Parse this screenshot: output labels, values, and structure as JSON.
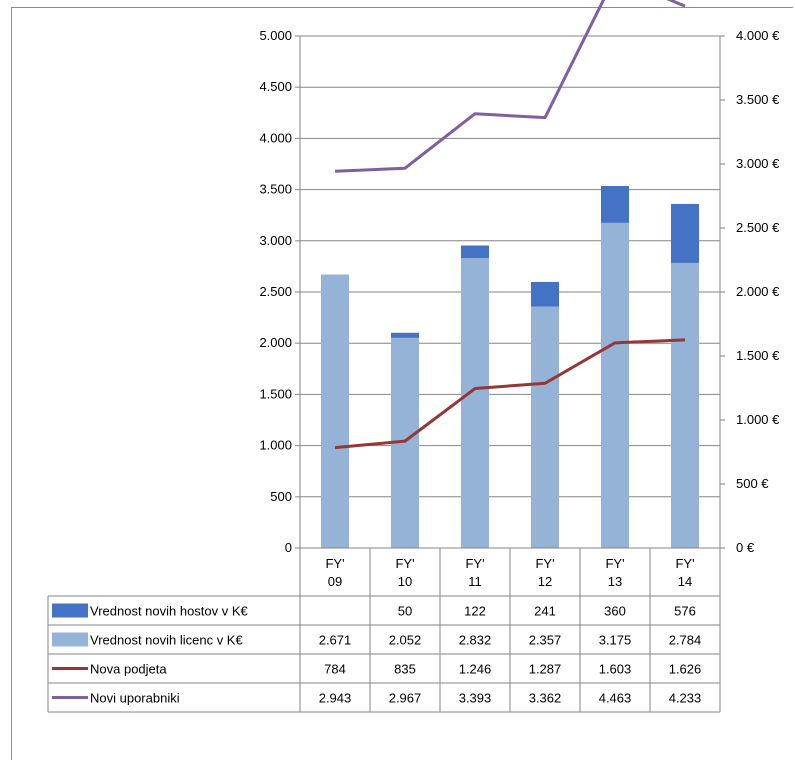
{
  "chart_data": {
    "type": "bar",
    "stacked": true,
    "categories": [
      [
        "FY'",
        "09"
      ],
      [
        "FY'",
        "10"
      ],
      [
        "FY'",
        "11"
      ],
      [
        "FY'",
        "12"
      ],
      [
        "FY'",
        "13"
      ],
      [
        "FY'",
        "14"
      ]
    ],
    "left_axis": {
      "ylim": [
        0,
        5000
      ],
      "ticks": [
        0,
        500,
        1000,
        1500,
        2000,
        2500,
        3000,
        3500,
        4000,
        4500,
        5000
      ],
      "tick_labels": [
        "0",
        "500",
        "1.000",
        "1.500",
        "2.000",
        "2.500",
        "3.000",
        "3.500",
        "4.000",
        "4.500",
        "5.000"
      ]
    },
    "right_axis": {
      "ylim": [
        0,
        4000
      ],
      "ticks": [
        0,
        500,
        1000,
        1500,
        2000,
        2500,
        3000,
        3500,
        4000
      ],
      "tick_labels": [
        "0 €",
        "500 €",
        "1.000 €",
        "1.500 €",
        "2.000 €",
        "2.500 €",
        "3.000 €",
        "3.500 €",
        "4.000 €"
      ]
    },
    "series": [
      {
        "name": "Vrednost novih hostov v K€",
        "kind": "bar",
        "axis": "left",
        "color": "#4472C4",
        "values": [
          0,
          50,
          122,
          241,
          360,
          576
        ],
        "display": [
          "",
          "50",
          "122",
          "241",
          "360",
          "576"
        ]
      },
      {
        "name": "Vrednost novih licenc v K€",
        "kind": "bar",
        "axis": "left",
        "color": "#95B3D7",
        "values": [
          2671,
          2052,
          2832,
          2357,
          3175,
          2784
        ],
        "display": [
          "2.671",
          "2.052",
          "2.832",
          "2.357",
          "3.175",
          "2.784"
        ]
      },
      {
        "name": "Nova podjeta",
        "kind": "line",
        "axis": "right",
        "color": "#953735",
        "values": [
          784,
          835,
          1246,
          1287,
          1603,
          1626
        ],
        "display": [
          "784",
          "835",
          "1.246",
          "1.287",
          "1.603",
          "1.626"
        ]
      },
      {
        "name": "Novi uporabniki",
        "kind": "line",
        "axis": "right",
        "color": "#7F5FA0",
        "values": [
          2943,
          2967,
          3393,
          3362,
          4463,
          4233
        ],
        "display": [
          "2.943",
          "2.967",
          "3.393",
          "3.362",
          "4.463",
          "4.233"
        ]
      }
    ],
    "grid": true,
    "legend": "data-table"
  }
}
